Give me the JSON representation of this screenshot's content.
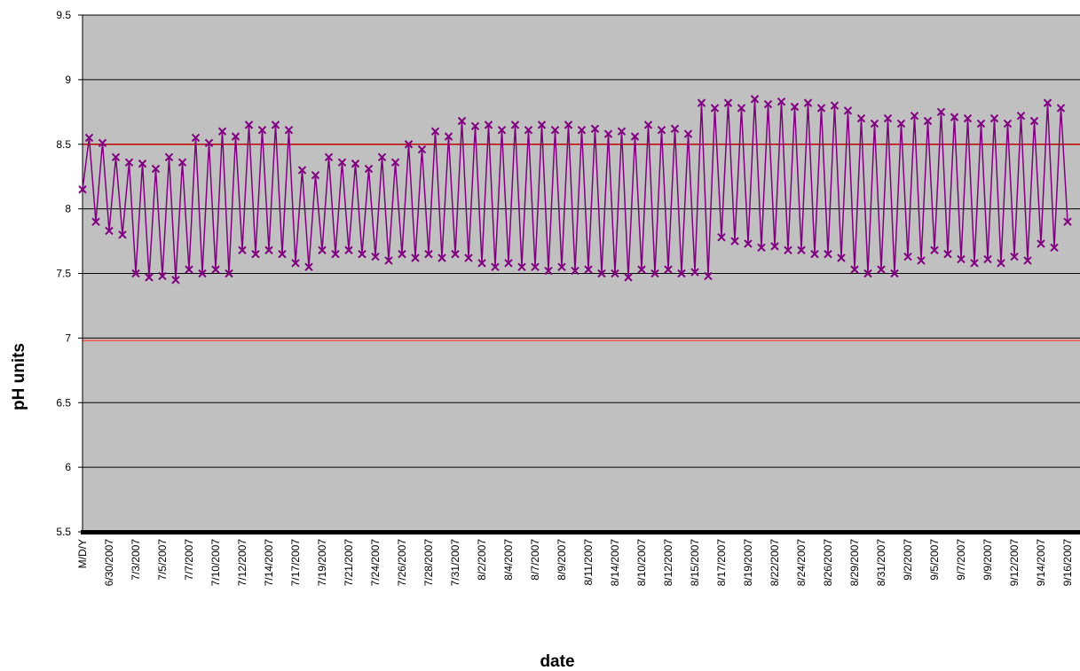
{
  "chart_data": {
    "type": "line",
    "x_label": "date",
    "y_label": "pH units",
    "categories": [
      "M/D/Y",
      null,
      null,
      null,
      "6/30/2007",
      null,
      null,
      null,
      "7/3/2007",
      null,
      null,
      null,
      "7/5/2007",
      null,
      null,
      null,
      "7/7/2007",
      null,
      null,
      null,
      "7/10/2007",
      null,
      null,
      null,
      "7/12/2007",
      null,
      null,
      null,
      "7/14/2007",
      null,
      null,
      null,
      "7/17/2007",
      null,
      null,
      null,
      "7/19/2007",
      null,
      null,
      null,
      "7/21/2007",
      null,
      null,
      null,
      "7/24/2007",
      null,
      null,
      null,
      "7/26/2007",
      null,
      null,
      null,
      "7/28/2007",
      null,
      null,
      null,
      "7/31/2007",
      null,
      null,
      null,
      "8/2/2007",
      null,
      null,
      null,
      "8/4/2007",
      null,
      null,
      null,
      "8/7/2007",
      null,
      null,
      null,
      "8/9/2007",
      null,
      null,
      null,
      "8/11/2007",
      null,
      null,
      null,
      "8/14/2007",
      null,
      null,
      null,
      "8/10/2007",
      null,
      null,
      null,
      "8/12/2007",
      null,
      null,
      null,
      "8/15/2007",
      null,
      null,
      null,
      "8/17/2007",
      null,
      null,
      null,
      "8/19/2007",
      null,
      null,
      null,
      "8/22/2007",
      null,
      null,
      null,
      "8/24/2007",
      null,
      null,
      null,
      "8/26/2007",
      null,
      null,
      null,
      "8/29/2007",
      null,
      null,
      null,
      "8/31/2007",
      null,
      null,
      null,
      "9/2/2007",
      null,
      null,
      null,
      "9/5/2007",
      null,
      null,
      null,
      "9/7/2007",
      null,
      null,
      null,
      "9/9/2007",
      null,
      null,
      null,
      "9/12/2007",
      null,
      null,
      null,
      "9/14/2007",
      null,
      null,
      null,
      "9/16/2007"
    ],
    "series": [
      {
        "color": "#800080",
        "values": [
          8.15,
          8.55,
          7.9,
          8.51,
          7.83,
          8.4,
          7.8,
          8.36,
          7.5,
          8.35,
          7.47,
          8.31,
          7.48,
          8.4,
          7.45,
          8.36,
          7.53,
          8.55,
          7.5,
          8.51,
          7.53,
          8.6,
          7.5,
          8.56,
          7.68,
          8.65,
          7.65,
          8.61,
          7.68,
          8.65,
          7.65,
          8.61,
          7.58,
          8.3,
          7.55,
          8.26,
          7.68,
          8.4,
          7.65,
          8.36,
          7.68,
          8.35,
          7.65,
          8.31,
          7.63,
          8.4,
          7.6,
          8.36,
          7.65,
          8.5,
          7.62,
          8.46,
          7.65,
          8.6,
          7.62,
          8.56,
          7.65,
          8.68,
          7.62,
          8.64,
          7.58,
          8.65,
          7.55,
          8.61,
          7.58,
          8.65,
          7.55,
          8.61,
          7.55,
          8.65,
          7.52,
          8.61,
          7.55,
          8.65,
          7.52,
          8.61,
          7.53,
          8.62,
          7.5,
          8.58,
          7.5,
          8.6,
          7.47,
          8.56,
          7.53,
          8.65,
          7.5,
          8.61,
          7.53,
          8.62,
          7.5,
          8.58,
          7.51,
          8.82,
          7.48,
          8.78,
          7.78,
          8.82,
          7.75,
          8.78,
          7.73,
          8.85,
          7.7,
          8.81,
          7.71,
          8.83,
          7.68,
          8.79,
          7.68,
          8.82,
          7.65,
          8.78,
          7.65,
          8.8,
          7.62,
          8.76,
          7.53,
          8.7,
          7.5,
          8.66,
          7.53,
          8.7,
          7.5,
          8.66,
          7.63,
          8.72,
          7.6,
          8.68,
          7.68,
          8.75,
          7.65,
          8.71,
          7.61,
          8.7,
          7.58,
          8.66,
          7.61,
          8.7,
          7.58,
          8.66,
          7.63,
          8.72,
          7.6,
          8.68,
          7.73,
          8.82,
          7.7,
          8.78,
          7.9
        ]
      }
    ],
    "ylim": [
      5.5,
      9.5
    ],
    "yticks": [
      5.5,
      6,
      6.5,
      7,
      7.5,
      8,
      8.5,
      9,
      9.5
    ],
    "grid": true,
    "plot_background": "#c0c0c0",
    "reference_lines": [
      {
        "value": 8.5,
        "color": "#c00000"
      },
      {
        "value": 6.98,
        "color": "#ff5050"
      }
    ]
  }
}
